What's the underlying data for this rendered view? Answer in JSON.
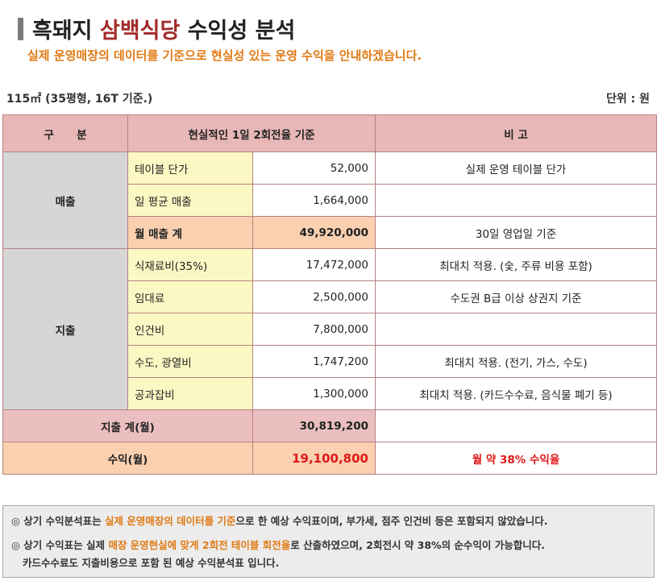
{
  "header": {
    "title_prefix": "흑돼지",
    "title_accent": "삼백식당",
    "title_suffix": "수익성 분석",
    "subtitle": "실제 운영매장의 데이터를 기준으로 현실성 있는 운영 수익을 안내하겠습니다.",
    "size_note": "115㎡ (35평형, 16T 기준.)",
    "unit_note": "단위 : 원"
  },
  "table": {
    "headers": [
      "구      분",
      "현실적인 1일 2회전율 기준",
      "비 고"
    ],
    "revenue": {
      "category": "매출",
      "rows": [
        {
          "item": "테이블 단가",
          "value": "52,000",
          "note": "실제 운영 테이블 단가"
        },
        {
          "item": "일 평균 매출",
          "value": "1,664,000",
          "note": ""
        },
        {
          "item": "월 매출 계",
          "value": "49,920,000",
          "note": "30일 영업일 기준"
        }
      ]
    },
    "expense": {
      "category": "지출",
      "rows": [
        {
          "item": "식재료비(35%)",
          "value": "17,472,000",
          "note": "최대치 적용. (숯, 주류 비용 포함)"
        },
        {
          "item": "임대료",
          "value": "2,500,000",
          "note": "수도권 B급 이상 상권지 기준"
        },
        {
          "item": "인건비",
          "value": "7,800,000",
          "note": ""
        },
        {
          "item": "수도, 광열비",
          "value": "1,747,200",
          "note": "최대치 적용. (전기, 가스, 수도)"
        },
        {
          "item": "공과잡비",
          "value": "1,300,000",
          "note": "최대치 적용. (카드수수료, 음식물 폐기 등)"
        }
      ]
    },
    "expense_total": {
      "label": "지출 계(월)",
      "value": "30,819,200",
      "note": ""
    },
    "profit": {
      "label": "수익(월)",
      "value": "19,100,800",
      "note": "월 약 38% 수익율"
    }
  },
  "notes": {
    "line1_a": "◎ 상기 수익분석표는 ",
    "line1_hl": "실제 운영매장의 데이터를 기준",
    "line1_b": "으로 한 예상 수익표이며, 부가세, 점주 인건비 등은 포함되지 않았습니다.",
    "line2_a": "◎ 상기 수익표는 실제 ",
    "line2_hl": "매장 운영현실에 맞게 2회전 테이블 회전율",
    "line2_b": "로 산출하였으며, 2회전시 약 38%의 순수익이 가능합니다.",
    "line3": "카드수수료도 지출비용으로 포함 된 예상 수익분석표 입니다."
  },
  "colors": {
    "title_accent": "#a32a2a",
    "subtitle": "#e07a14",
    "header_bg": "#e8b7b7",
    "category_bg": "#d6d6d6",
    "item_bg": "#fcf8c4",
    "sum_bg": "#f9d0b0",
    "profit_text": "#e01818"
  }
}
